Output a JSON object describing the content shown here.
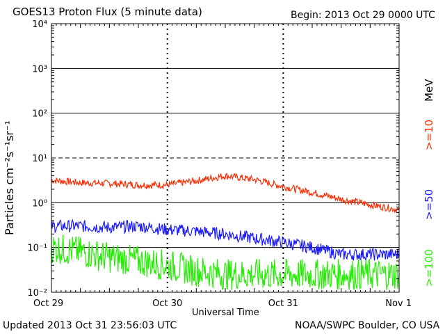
{
  "header": {
    "title": "GOES13 Proton Flux (5 minute data)",
    "begin": "Begin: 2013 Oct 29 0000 UTC"
  },
  "footer": {
    "updated": "Updated 2013 Oct 31 23:56:03 UTC",
    "source": "NOAA/SWPC Boulder, CO USA"
  },
  "chart_data": {
    "type": "line",
    "xlabel": "Universal Time",
    "ylabel": "Particles cm⁻²s⁻¹sr⁻¹",
    "y_scale": "log",
    "ylim": [
      0.01,
      10000
    ],
    "xlim": [
      "2013-10-29",
      "2013-11-01"
    ],
    "x_ticks": [
      "Oct 29",
      "Oct 30",
      "Oct 31",
      "Nov 1"
    ],
    "y_ticks": [
      "10⁻²",
      "10⁻¹",
      "10⁰",
      "10¹",
      "10²",
      "10³",
      "10⁴"
    ],
    "legend_placement": "right",
    "legend_unit": "MeV",
    "series": [
      {
        "name": ">=10",
        "color": "#ff2a00",
        "x": [
          "2013-10-29 00:00",
          "2013-10-29 06:00",
          "2013-10-29 12:00",
          "2013-10-29 18:00",
          "2013-10-30 00:00",
          "2013-10-30 06:00",
          "2013-10-30 12:00",
          "2013-10-30 18:00",
          "2013-10-31 00:00",
          "2013-10-31 06:00",
          "2013-10-31 12:00",
          "2013-10-31 18:00",
          "2013-11-01 00:00"
        ],
        "values": [
          3.2,
          2.8,
          2.7,
          2.5,
          2.5,
          3.1,
          4.0,
          3.3,
          2.3,
          1.7,
          1.2,
          0.9,
          0.7
        ]
      },
      {
        "name": ">=50",
        "color": "#1a1aff",
        "x": [
          "2013-10-29 00:00",
          "2013-10-29 06:00",
          "2013-10-29 12:00",
          "2013-10-29 18:00",
          "2013-10-30 00:00",
          "2013-10-30 06:00",
          "2013-10-30 12:00",
          "2013-10-30 18:00",
          "2013-10-31 00:00",
          "2013-10-31 06:00",
          "2013-10-31 12:00",
          "2013-10-31 18:00",
          "2013-11-01 00:00"
        ],
        "values": [
          0.3,
          0.3,
          0.28,
          0.3,
          0.25,
          0.23,
          0.2,
          0.16,
          0.13,
          0.1,
          0.07,
          0.07,
          0.07
        ]
      },
      {
        "name": ">=100",
        "color": "#22ee00",
        "x": [
          "2013-10-29 00:00",
          "2013-10-29 06:00",
          "2013-10-29 12:00",
          "2013-10-29 18:00",
          "2013-10-30 00:00",
          "2013-10-30 06:00",
          "2013-10-30 12:00",
          "2013-10-30 18:00",
          "2013-10-31 00:00",
          "2013-10-31 06:00",
          "2013-10-31 12:00",
          "2013-10-31 18:00",
          "2013-11-01 00:00"
        ],
        "values": [
          0.1,
          0.08,
          0.06,
          0.05,
          0.04,
          0.03,
          0.025,
          0.025,
          0.025,
          0.025,
          0.025,
          0.025,
          0.025
        ]
      }
    ]
  }
}
